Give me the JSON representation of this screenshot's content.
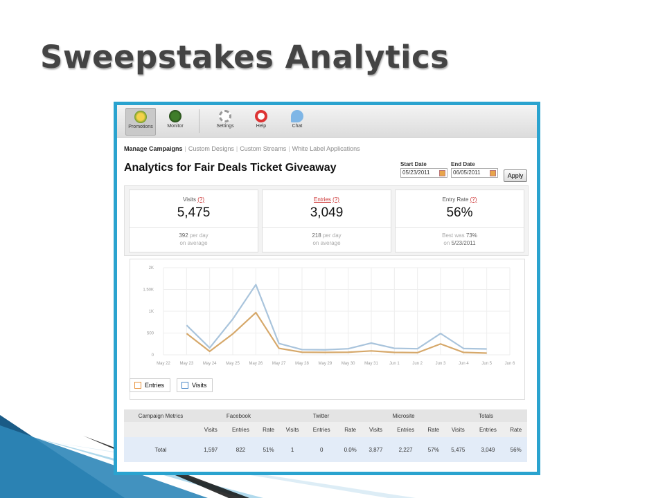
{
  "slide": {
    "title": "Sweepstakes Analytics"
  },
  "toolbar": {
    "items": [
      {
        "label": "Promotions",
        "icon": "promotions-icon",
        "active": true
      },
      {
        "label": "Monitor",
        "icon": "monitor-icon"
      },
      {
        "label": "Settings",
        "icon": "gear-icon"
      },
      {
        "label": "Help",
        "icon": "lifebuoy-icon"
      },
      {
        "label": "Chat",
        "icon": "chat-bubble-icon"
      }
    ]
  },
  "nav": {
    "current": "Manage Campaigns",
    "links": [
      "Custom Designs",
      "Custom Streams",
      "White Label Applications"
    ]
  },
  "page": {
    "title": "Analytics for Fair Deals Ticket Giveaway"
  },
  "dates": {
    "start_label": "Start Date",
    "start_value": "05/23/2011",
    "end_label": "End Date",
    "end_value": "06/05/2011",
    "apply_label": "Apply"
  },
  "stats": [
    {
      "label": "Visits",
      "help": "(?)",
      "value": "5,475",
      "sub_value": "392",
      "sub_unit": "per day",
      "sub_line2": "on average"
    },
    {
      "label": "Entries",
      "help": "(?)",
      "value": "3,049",
      "sub_value": "218",
      "sub_unit": "per day",
      "sub_line2": "on average"
    },
    {
      "label": "Entry Rate",
      "help": "(?)",
      "value": "56%",
      "sub_prefix": "Best was",
      "sub_value": "73%",
      "sub_line2_prefix": "on",
      "sub_line2_value": "5/23/2011"
    }
  ],
  "chart_data": {
    "type": "line",
    "x": [
      "May 22",
      "May 23",
      "May 24",
      "May 25",
      "May 26",
      "May 27",
      "May 28",
      "May 29",
      "May 30",
      "May 31",
      "Jun 1",
      "Jun 2",
      "Jun 3",
      "Jun 4",
      "Jun 5",
      "Jun 6"
    ],
    "yticks": [
      "0",
      "500",
      "1K",
      "1.50K",
      "2K"
    ],
    "ylim": [
      0,
      2000
    ],
    "series": [
      {
        "name": "Visits",
        "color": "#a9c4dc",
        "values": [
          null,
          680,
          160,
          820,
          1610,
          260,
          120,
          115,
          140,
          270,
          150,
          140,
          490,
          145,
          135,
          null
        ]
      },
      {
        "name": "Entries",
        "color": "#d6a86a",
        "values": [
          null,
          490,
          80,
          480,
          970,
          150,
          60,
          55,
          60,
          90,
          55,
          50,
          250,
          55,
          40,
          null
        ]
      }
    ],
    "grid": true
  },
  "legend": [
    {
      "label": "Entries",
      "color": "#e8923a"
    },
    {
      "label": "Visits",
      "color": "#4a88c8"
    }
  ],
  "metrics": {
    "corner": "Campaign Metrics",
    "groups": [
      "Facebook",
      "Twitter",
      "Microsite",
      "Totals"
    ],
    "sub_headers": [
      "Visits",
      "Entries",
      "Rate"
    ],
    "row_label": "Total",
    "row": [
      "1,597",
      "822",
      "51%",
      "1",
      "0",
      "0.0%",
      "3,877",
      "2,227",
      "57%",
      "5,475",
      "3,049",
      "56%"
    ]
  }
}
